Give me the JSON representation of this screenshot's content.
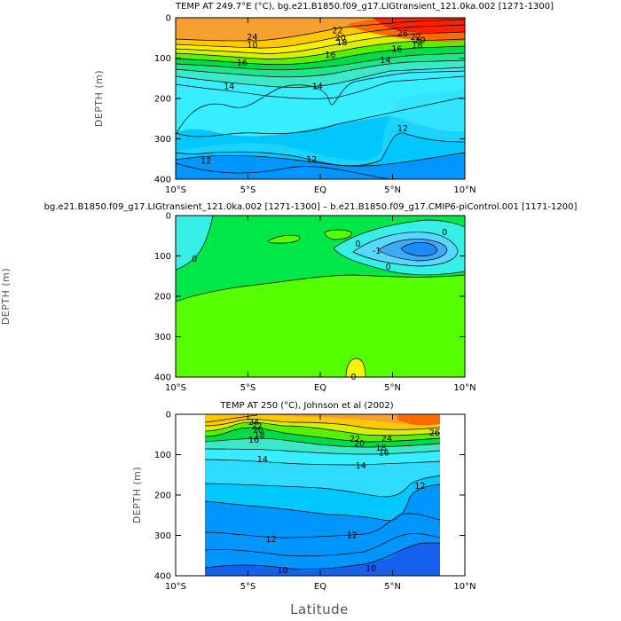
{
  "figure": {
    "x_title": "Latitude"
  },
  "colors": {
    "c10": "#1560ec",
    "c11": "#0096ff",
    "c12": "#00c8ff",
    "c13": "#2fdcff",
    "c14": "#36eeff",
    "c15": "#3be9c8",
    "c16": "#1ee48c",
    "c17": "#00dc48",
    "c18": "#38e838",
    "c19": "#58f000",
    "c20": "#a0f000",
    "c21": "#d8f000",
    "c22": "#f8f000",
    "c23": "#ffc800",
    "c24": "#f6a030",
    "c26": "#ff6a00",
    "c28": "#ff2000",
    "d_neg3": "#1a8cff",
    "d_neg2": "#41aaf8",
    "d_neg1": "#58d8ff",
    "d_neg05": "#36f0e8",
    "d_0": "#00e848",
    "d_pos": "#56ff00",
    "d_hi": "#f6f500"
  },
  "chart_data": [
    {
      "type": "contour",
      "title": "TEMP AT 249.7°E (°C), bg.e21.B1850.f09_g17.LIGtransient_121.0ka.002 [1271-1300]",
      "xlabel": "",
      "ylabel": "DEPTH (m)",
      "x_ticks": [
        "10°S",
        "5°S",
        "EQ",
        "5°N",
        "10°N"
      ],
      "y_ticks": [
        "0",
        "100",
        "200",
        "300",
        "400"
      ],
      "xlim": [
        -10,
        10
      ],
      "ylim": [
        400,
        0
      ],
      "contour_labels": [
        {
          "text": "24",
          "lat": -4.7,
          "depth": 48
        },
        {
          "text": "22",
          "lat": 1.2,
          "depth": 32
        },
        {
          "text": "26",
          "lat": 5.7,
          "depth": 40
        },
        {
          "text": "22",
          "lat": 6.6,
          "depth": 48
        },
        {
          "text": "20",
          "lat": 1.4,
          "depth": 50
        },
        {
          "text": "20",
          "lat": 6.9,
          "depth": 56
        },
        {
          "text": "18",
          "lat": 1.5,
          "depth": 62
        },
        {
          "text": "18",
          "lat": 6.7,
          "depth": 68
        },
        {
          "text": "16",
          "lat": 5.3,
          "depth": 78
        },
        {
          "text": "10",
          "lat": -4.7,
          "depth": 68
        },
        {
          "text": "16",
          "lat": 0.7,
          "depth": 92
        },
        {
          "text": "16",
          "lat": -5.4,
          "depth": 112
        },
        {
          "text": "14",
          "lat": 4.5,
          "depth": 105
        },
        {
          "text": "14",
          "lat": -6.3,
          "depth": 170
        },
        {
          "text": "14",
          "lat": -0.2,
          "depth": 170
        },
        {
          "text": "12",
          "lat": 5.7,
          "depth": 275
        },
        {
          "text": "12",
          "lat": -7.9,
          "depth": 355
        },
        {
          "text": "12",
          "lat": -0.6,
          "depth": 352
        }
      ]
    },
    {
      "type": "contour",
      "title": "bg.e21.B1850.f09_g17.LIGtransient_121.0ka.002 [1271-1300] – b.e21.B1850.f09_g17.CMIP6-piControl.001 [1171-1200]",
      "xlabel": "",
      "ylabel": "DEPTH (m)",
      "x_ticks": [
        "10°S",
        "5°S",
        "EQ",
        "5°N",
        "10°N"
      ],
      "y_ticks": [
        "0",
        "100",
        "200",
        "300",
        "400"
      ],
      "xlim": [
        -10,
        10
      ],
      "ylim": [
        400,
        0
      ],
      "contour_labels": [
        {
          "text": "0",
          "lat": -8.7,
          "depth": 108
        },
        {
          "text": "0",
          "lat": 2.6,
          "depth": 70
        },
        {
          "text": "0",
          "lat": 8.6,
          "depth": 42
        },
        {
          "text": "-1",
          "lat": 3.9,
          "depth": 88
        },
        {
          "text": "0",
          "lat": 4.7,
          "depth": 128
        },
        {
          "text": "0",
          "lat": 2.3,
          "depth": 400
        }
      ]
    },
    {
      "type": "contour",
      "title": "TEMP AT 250 (°C), Johnson et al (2002)",
      "xlabel": "Latitude",
      "ylabel": "DEPTH (m)",
      "x_ticks": [
        "10°S",
        "5°S",
        "EQ",
        "5°N",
        "10°N"
      ],
      "y_ticks": [
        "0",
        "100",
        "200",
        "300",
        "400"
      ],
      "xlim": [
        -10,
        10
      ],
      "ylim": [
        400,
        0
      ],
      "data_range_lat": [
        -8,
        8.3
      ],
      "contour_labels": [
        {
          "text": "24",
          "lat": -4.6,
          "depth": 20
        },
        {
          "text": "22",
          "lat": -4.4,
          "depth": 30
        },
        {
          "text": "20",
          "lat": -4.3,
          "depth": 40
        },
        {
          "text": "18",
          "lat": -4.2,
          "depth": 52
        },
        {
          "text": "16",
          "lat": -4.6,
          "depth": 64
        },
        {
          "text": "22",
          "lat": 2.4,
          "depth": 62
        },
        {
          "text": "20",
          "lat": 2.7,
          "depth": 72
        },
        {
          "text": "24",
          "lat": 4.6,
          "depth": 60
        },
        {
          "text": "26",
          "lat": 7.9,
          "depth": 46
        },
        {
          "text": "18",
          "lat": 4.2,
          "depth": 84
        },
        {
          "text": "16",
          "lat": 4.4,
          "depth": 96
        },
        {
          "text": "14",
          "lat": -4.0,
          "depth": 112
        },
        {
          "text": "14",
          "lat": 2.8,
          "depth": 128
        },
        {
          "text": "12",
          "lat": 6.9,
          "depth": 178
        },
        {
          "text": "12",
          "lat": -3.4,
          "depth": 310
        },
        {
          "text": "12",
          "lat": 2.2,
          "depth": 300
        },
        {
          "text": "10",
          "lat": -2.6,
          "depth": 387
        },
        {
          "text": "10",
          "lat": 3.5,
          "depth": 382
        }
      ]
    }
  ]
}
